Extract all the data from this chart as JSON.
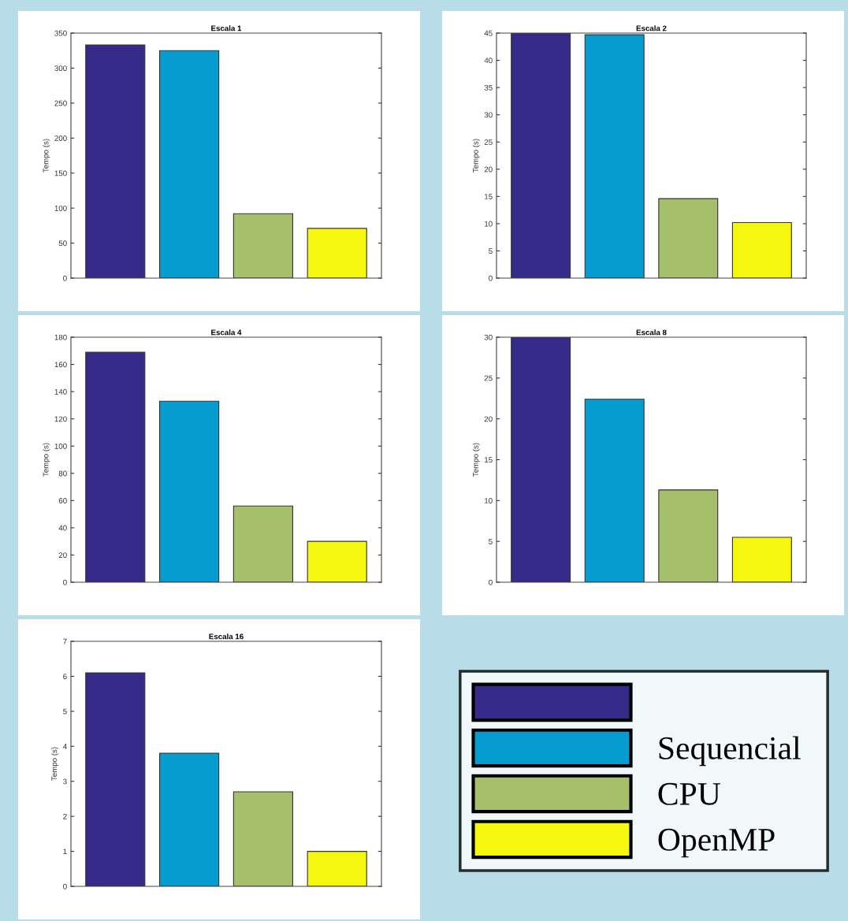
{
  "chart_data": [
    {
      "type": "bar",
      "title": "Escala 1",
      "ylabel": "Tempo (s)",
      "categories": [
        null
      ],
      "ylim": [
        0,
        350
      ],
      "yticks": [
        0,
        50,
        100,
        150,
        200,
        250,
        300,
        350
      ],
      "grid": false,
      "series": [
        {
          "color": "#352a87",
          "values": [
            333
          ]
        },
        {
          "color": "#069cd0",
          "values": [
            325
          ]
        },
        {
          "color": "#a6bf6a",
          "values": [
            92
          ]
        },
        {
          "color": "#f6f70e",
          "values": [
            71
          ]
        }
      ]
    },
    {
      "type": "bar",
      "title": "Escala 2",
      "ylabel": "Tempo (s)",
      "categories": [
        null
      ],
      "ylim": [
        0,
        45
      ],
      "yticks": [
        0,
        5,
        10,
        15,
        20,
        25,
        30,
        35,
        40,
        45
      ],
      "grid": false,
      "series": [
        {
          "color": "#352a87",
          "values": [
            45
          ]
        },
        {
          "color": "#069cd0",
          "values": [
            44.7
          ]
        },
        {
          "color": "#a6bf6a",
          "values": [
            14.6
          ]
        },
        {
          "color": "#f6f70e",
          "values": [
            10.2
          ]
        }
      ]
    },
    {
      "type": "bar",
      "title": "Escala 4",
      "ylabel": "Tempo (s)",
      "categories": [
        null
      ],
      "ylim": [
        0,
        180
      ],
      "yticks": [
        0,
        20,
        40,
        60,
        80,
        100,
        120,
        140,
        160,
        180
      ],
      "grid": false,
      "series": [
        {
          "color": "#352a87",
          "values": [
            169
          ]
        },
        {
          "color": "#069cd0",
          "values": [
            133
          ]
        },
        {
          "color": "#a6bf6a",
          "values": [
            56
          ]
        },
        {
          "color": "#f6f70e",
          "values": [
            30
          ]
        }
      ]
    },
    {
      "type": "bar",
      "title": "Escala 8",
      "ylabel": "Tempo (s)",
      "categories": [
        null
      ],
      "ylim": [
        0,
        30
      ],
      "yticks": [
        0,
        5,
        10,
        15,
        20,
        25,
        30
      ],
      "grid": false,
      "series": [
        {
          "color": "#352a87",
          "values": [
            30
          ]
        },
        {
          "color": "#069cd0",
          "values": [
            22.4
          ]
        },
        {
          "color": "#a6bf6a",
          "values": [
            11.3
          ]
        },
        {
          "color": "#f6f70e",
          "values": [
            5.5
          ]
        }
      ]
    },
    {
      "type": "bar",
      "title": "Escala 16",
      "ylabel": "Tempo (s)",
      "categories": [
        null
      ],
      "ylim": [
        0,
        7
      ],
      "yticks": [
        0,
        1,
        2,
        3,
        4,
        5,
        6,
        7
      ],
      "grid": false,
      "legend": "bottom right",
      "series": [
        {
          "name": null,
          "color": "#352a87",
          "values": [
            6.1
          ]
        },
        {
          "name": "Sequencial",
          "color": "#069cd0",
          "values": [
            3.8
          ]
        },
        {
          "name": "CPU",
          "color": "#a6bf6a",
          "values": [
            2.7
          ]
        },
        {
          "name": "OpenMP",
          "color": "#f6f70e",
          "values": [
            1.0
          ]
        }
      ]
    }
  ]
}
